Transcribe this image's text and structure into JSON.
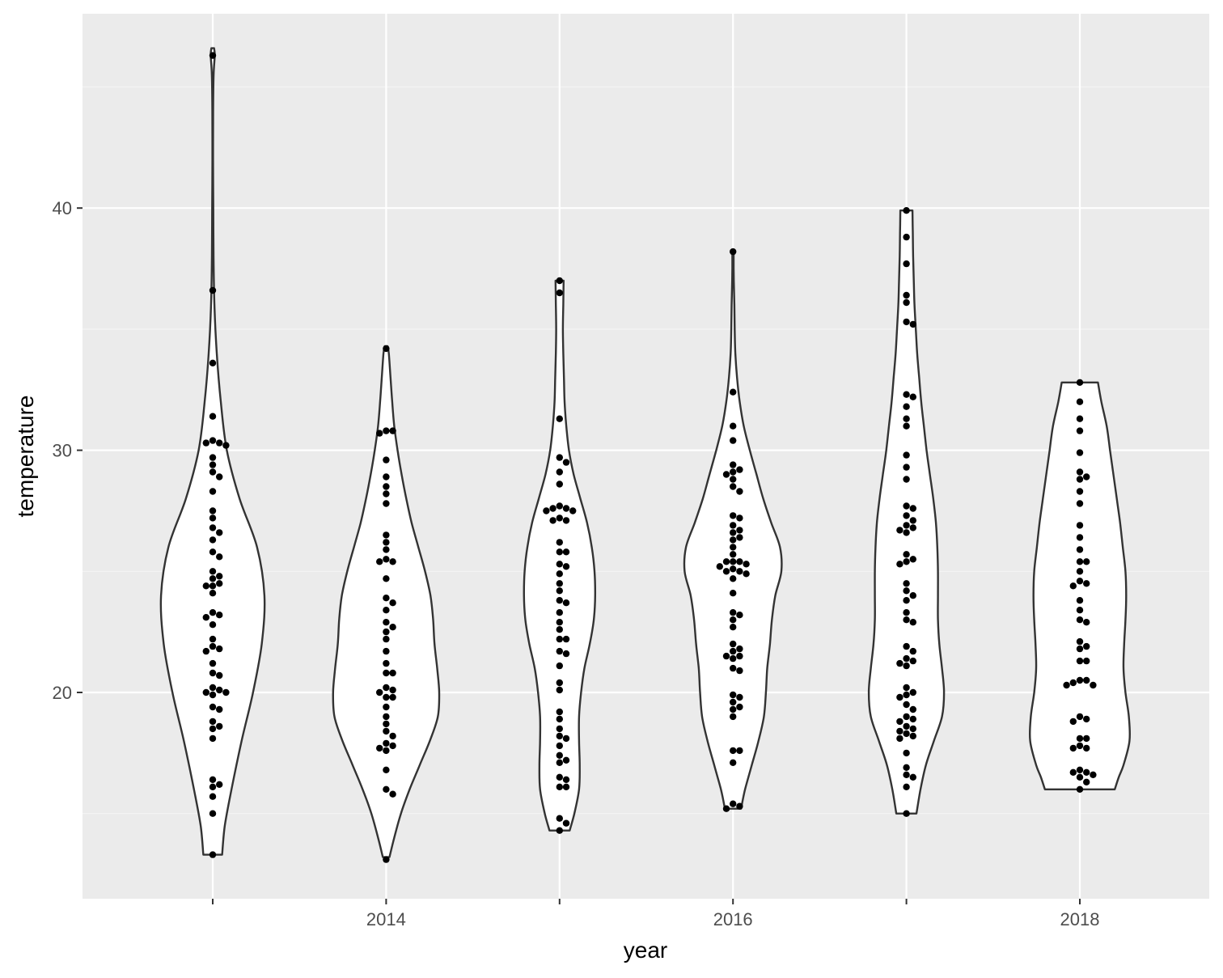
{
  "chart_data": {
    "type": "violin",
    "title": "",
    "xlabel": "year",
    "ylabel": "temperature",
    "x_ticks": [
      2014,
      2016,
      2018
    ],
    "y_ticks": [
      20,
      30,
      40
    ],
    "xlim": [
      2012.25,
      2018.75
    ],
    "ylim": [
      11.5,
      48.0
    ],
    "grid": true,
    "legend": "none",
    "colors": {
      "panel": "#ebebeb",
      "grid_major": "#ffffff",
      "grid_minor": "#f4f4f4",
      "violin_fill": "#ffffff",
      "violin_stroke": "#333333",
      "point": "#000000"
    },
    "series": [
      {
        "x": 2013,
        "profile": [
          [
            13.3,
            0.14
          ],
          [
            14.5,
            0.18
          ],
          [
            16.0,
            0.28
          ],
          [
            18.0,
            0.43
          ],
          [
            20.0,
            0.6
          ],
          [
            22.0,
            0.73
          ],
          [
            24.0,
            0.77
          ],
          [
            26.0,
            0.66
          ],
          [
            28.0,
            0.4
          ],
          [
            30.0,
            0.21
          ],
          [
            32.0,
            0.12
          ],
          [
            34.0,
            0.06
          ],
          [
            36.0,
            0.025
          ],
          [
            38.0,
            0.012
          ],
          [
            40.0,
            0.008
          ],
          [
            42.0,
            0.005
          ],
          [
            44.0,
            0.006
          ],
          [
            45.5,
            0.013
          ],
          [
            46.3,
            0.03
          ],
          [
            46.6,
            0.02
          ]
        ],
        "points": [
          46.3,
          36.6,
          33.6,
          31.4,
          30.4,
          30.3,
          30.3,
          30.2,
          29.7,
          29.4,
          29.1,
          28.9,
          28.3,
          27.5,
          27.2,
          26.8,
          26.6,
          26.3,
          25.8,
          25.6,
          25.0,
          24.8,
          24.7,
          24.5,
          24.4,
          24.4,
          24.1,
          23.3,
          23.2,
          23.1,
          22.8,
          22.2,
          21.9,
          21.8,
          21.7,
          21.2,
          20.8,
          20.7,
          20.2,
          20.1,
          20.0,
          20.0,
          19.9,
          19.4,
          19.3,
          18.8,
          18.6,
          18.5,
          18.1,
          16.4,
          16.2,
          16.1,
          15.7,
          15.0,
          13.3
        ]
      },
      {
        "x": 2014,
        "profile": [
          [
            13.2,
            0.05
          ],
          [
            14.0,
            0.12
          ],
          [
            15.0,
            0.22
          ],
          [
            16.0,
            0.35
          ],
          [
            17.0,
            0.5
          ],
          [
            18.0,
            0.65
          ],
          [
            19.0,
            0.77
          ],
          [
            20.0,
            0.79
          ],
          [
            21.0,
            0.76
          ],
          [
            22.0,
            0.72
          ],
          [
            23.0,
            0.7
          ],
          [
            24.0,
            0.66
          ],
          [
            25.0,
            0.58
          ],
          [
            26.0,
            0.48
          ],
          [
            27.0,
            0.38
          ],
          [
            28.0,
            0.3
          ],
          [
            29.0,
            0.23
          ],
          [
            30.0,
            0.17
          ],
          [
            31.0,
            0.12
          ],
          [
            32.0,
            0.09
          ],
          [
            33.0,
            0.065
          ],
          [
            34.0,
            0.04
          ],
          [
            34.3,
            0.02
          ]
        ],
        "points": [
          34.2,
          30.8,
          30.8,
          30.7,
          29.6,
          28.9,
          28.5,
          28.2,
          27.8,
          26.5,
          26.2,
          25.9,
          25.5,
          25.4,
          25.4,
          24.7,
          23.9,
          23.7,
          23.4,
          22.9,
          22.7,
          22.5,
          22.2,
          21.7,
          21.2,
          20.8,
          20.8,
          20.2,
          20.1,
          20.0,
          19.8,
          19.8,
          19.4,
          19.0,
          18.7,
          18.4,
          18.2,
          17.9,
          17.8,
          17.7,
          17.6,
          16.8,
          16.0,
          15.8,
          13.1
        ]
      },
      {
        "x": 2015,
        "profile": [
          [
            14.3,
            0.15
          ],
          [
            15.0,
            0.22
          ],
          [
            16.0,
            0.29
          ],
          [
            17.0,
            0.3
          ],
          [
            18.0,
            0.29
          ],
          [
            19.0,
            0.29
          ],
          [
            20.0,
            0.32
          ],
          [
            21.0,
            0.37
          ],
          [
            22.0,
            0.45
          ],
          [
            23.0,
            0.51
          ],
          [
            24.0,
            0.53
          ],
          [
            25.0,
            0.52
          ],
          [
            26.0,
            0.48
          ],
          [
            27.0,
            0.41
          ],
          [
            28.0,
            0.31
          ],
          [
            29.0,
            0.21
          ],
          [
            30.0,
            0.14
          ],
          [
            31.0,
            0.1
          ],
          [
            32.0,
            0.075
          ],
          [
            33.0,
            0.065
          ],
          [
            34.0,
            0.055
          ],
          [
            35.0,
            0.05
          ],
          [
            36.0,
            0.055
          ],
          [
            37.0,
            0.06
          ]
        ],
        "points": [
          37.0,
          36.5,
          31.3,
          29.7,
          29.5,
          29.1,
          28.6,
          27.7,
          27.6,
          27.6,
          27.5,
          27.5,
          27.2,
          27.1,
          27.1,
          26.2,
          25.8,
          25.8,
          25.3,
          25.2,
          24.9,
          24.5,
          24.2,
          23.8,
          23.7,
          23.3,
          22.9,
          22.6,
          22.2,
          22.2,
          21.7,
          21.6,
          21.1,
          20.4,
          20.1,
          19.2,
          18.9,
          18.5,
          18.2,
          18.1,
          17.8,
          17.4,
          17.2,
          17.1,
          16.5,
          16.4,
          16.1,
          16.1,
          14.8,
          14.6,
          14.3
        ]
      },
      {
        "x": 2016,
        "profile": [
          [
            15.2,
            0.12
          ],
          [
            16.0,
            0.18
          ],
          [
            17.0,
            0.28
          ],
          [
            18.0,
            0.38
          ],
          [
            19.0,
            0.46
          ],
          [
            20.0,
            0.49
          ],
          [
            21.0,
            0.51
          ],
          [
            22.0,
            0.55
          ],
          [
            23.0,
            0.58
          ],
          [
            24.0,
            0.63
          ],
          [
            25.0,
            0.72
          ],
          [
            26.0,
            0.7
          ],
          [
            27.0,
            0.57
          ],
          [
            28.0,
            0.45
          ],
          [
            29.0,
            0.35
          ],
          [
            30.0,
            0.25
          ],
          [
            31.0,
            0.16
          ],
          [
            32.0,
            0.1
          ],
          [
            33.0,
            0.06
          ],
          [
            34.0,
            0.035
          ],
          [
            35.0,
            0.025
          ],
          [
            36.0,
            0.02
          ],
          [
            37.0,
            0.012
          ],
          [
            37.5,
            0.01
          ],
          [
            38.0,
            0.01
          ],
          [
            38.2,
            0.01
          ]
        ],
        "points": [
          38.2,
          32.4,
          31.0,
          30.4,
          29.4,
          29.2,
          29.1,
          29.0,
          28.8,
          28.5,
          28.3,
          27.3,
          27.2,
          26.9,
          26.7,
          26.6,
          26.4,
          26.3,
          26.0,
          25.7,
          25.4,
          25.4,
          25.4,
          25.3,
          25.2,
          25.1,
          25.0,
          25.0,
          24.9,
          24.7,
          24.1,
          23.3,
          23.2,
          23.0,
          22.7,
          22.0,
          21.8,
          21.7,
          21.5,
          21.5,
          21.4,
          21.0,
          20.9,
          19.9,
          19.8,
          19.6,
          19.4,
          19.3,
          19.0,
          17.6,
          17.6,
          17.1,
          15.4,
          15.3,
          15.2
        ]
      },
      {
        "x": 2017,
        "profile": [
          [
            15.0,
            0.15
          ],
          [
            16.0,
            0.21
          ],
          [
            17.0,
            0.29
          ],
          [
            18.0,
            0.41
          ],
          [
            19.0,
            0.53
          ],
          [
            20.0,
            0.56
          ],
          [
            21.0,
            0.53
          ],
          [
            22.0,
            0.49
          ],
          [
            23.0,
            0.47
          ],
          [
            24.0,
            0.47
          ],
          [
            25.0,
            0.47
          ],
          [
            26.0,
            0.46
          ],
          [
            27.0,
            0.44
          ],
          [
            28.0,
            0.4
          ],
          [
            29.0,
            0.35
          ],
          [
            30.0,
            0.3
          ],
          [
            31.0,
            0.26
          ],
          [
            32.0,
            0.22
          ],
          [
            33.0,
            0.19
          ],
          [
            34.0,
            0.16
          ],
          [
            35.0,
            0.14
          ],
          [
            36.0,
            0.12
          ],
          [
            37.0,
            0.11
          ],
          [
            38.0,
            0.1
          ],
          [
            39.0,
            0.095
          ],
          [
            39.9,
            0.09
          ]
        ],
        "points": [
          39.9,
          38.8,
          37.7,
          36.4,
          36.1,
          35.3,
          35.2,
          32.3,
          32.2,
          31.8,
          31.3,
          31.0,
          29.8,
          29.3,
          28.8,
          27.7,
          27.6,
          27.3,
          27.1,
          26.9,
          26.8,
          26.7,
          26.6,
          25.7,
          25.5,
          25.4,
          25.3,
          24.5,
          24.2,
          24.0,
          23.8,
          23.3,
          23.0,
          22.9,
          21.9,
          21.7,
          21.4,
          21.3,
          21.2,
          21.1,
          20.2,
          20.0,
          19.9,
          19.8,
          19.5,
          19.3,
          19.0,
          18.9,
          18.8,
          18.6,
          18.5,
          18.4,
          18.3,
          18.2,
          18.1,
          17.5,
          16.9,
          16.6,
          16.5,
          16.1,
          15.0
        ]
      },
      {
        "x": 2018,
        "profile": [
          [
            16.0,
            0.52
          ],
          [
            16.5,
            0.58
          ],
          [
            17.0,
            0.65
          ],
          [
            18.0,
            0.74
          ],
          [
            19.0,
            0.73
          ],
          [
            20.0,
            0.68
          ],
          [
            21.0,
            0.65
          ],
          [
            22.0,
            0.66
          ],
          [
            23.0,
            0.68
          ],
          [
            24.0,
            0.69
          ],
          [
            25.0,
            0.68
          ],
          [
            26.0,
            0.64
          ],
          [
            27.0,
            0.6
          ],
          [
            28.0,
            0.55
          ],
          [
            29.0,
            0.5
          ],
          [
            30.0,
            0.45
          ],
          [
            31.0,
            0.4
          ],
          [
            32.0,
            0.32
          ],
          [
            32.8,
            0.27
          ]
        ],
        "points": [
          32.8,
          32.0,
          31.3,
          30.8,
          29.9,
          29.1,
          28.9,
          28.8,
          28.3,
          27.8,
          26.9,
          26.4,
          25.9,
          25.4,
          25.4,
          25.0,
          24.6,
          24.5,
          24.4,
          23.8,
          23.4,
          23.0,
          22.9,
          22.1,
          21.9,
          21.8,
          21.3,
          21.3,
          20.5,
          20.5,
          20.4,
          20.3,
          20.3,
          19.0,
          18.9,
          18.8,
          18.1,
          18.1,
          17.8,
          17.7,
          17.7,
          16.8,
          16.7,
          16.7,
          16.6,
          16.5,
          16.3,
          16.0
        ]
      }
    ]
  }
}
